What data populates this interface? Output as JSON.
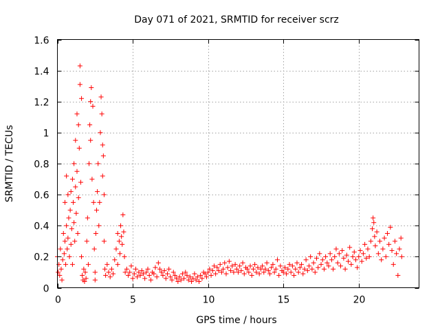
{
  "chart_data": {
    "type": "scatter",
    "title": "Day 071 of 2021, SRMTID for receiver scrz",
    "xlabel": "GPS time / hours",
    "ylabel": "SRMTID / TECUs",
    "xlim": [
      0,
      24
    ],
    "ylim": [
      0,
      1.6
    ],
    "xticks": [
      0,
      5,
      10,
      15,
      20
    ],
    "xtick_labels": [
      "0",
      "5",
      "10",
      "15",
      "20"
    ],
    "yticks": [
      0,
      0.2,
      0.4,
      0.6,
      0.8,
      1.0,
      1.2,
      1.4,
      1.6
    ],
    "ytick_labels": [
      "0",
      "0.2",
      "0.4",
      "0.6",
      "0.8",
      "1",
      "1.2",
      "1.4",
      "1.6"
    ],
    "grid": true,
    "marker": "+",
    "series": [
      {
        "name": "SRMTID",
        "color": "#ff0000",
        "points": [
          [
            0.0,
            0.2
          ],
          [
            0.05,
            0.1
          ],
          [
            0.1,
            0.15
          ],
          [
            0.15,
            0.08
          ],
          [
            0.2,
            0.25
          ],
          [
            0.25,
            0.12
          ],
          [
            0.3,
            0.05
          ],
          [
            0.35,
            0.18
          ],
          [
            0.4,
            0.35
          ],
          [
            0.45,
            0.22
          ],
          [
            0.5,
            0.3
          ],
          [
            0.5,
            0.55
          ],
          [
            0.55,
            0.15
          ],
          [
            0.6,
            0.4
          ],
          [
            0.6,
            0.72
          ],
          [
            0.65,
            0.25
          ],
          [
            0.7,
            0.6
          ],
          [
            0.7,
            0.32
          ],
          [
            0.75,
            0.45
          ],
          [
            0.8,
            0.2
          ],
          [
            0.85,
            0.5
          ],
          [
            0.9,
            0.62
          ],
          [
            0.9,
            0.28
          ],
          [
            0.95,
            0.38
          ],
          [
            1.0,
            0.7
          ],
          [
            1.0,
            0.15
          ],
          [
            1.05,
            0.55
          ],
          [
            1.1,
            0.8
          ],
          [
            1.1,
            0.42
          ],
          [
            1.15,
            0.3
          ],
          [
            1.2,
            0.65
          ],
          [
            1.2,
            0.95
          ],
          [
            1.25,
            0.48
          ],
          [
            1.3,
            0.75
          ],
          [
            1.3,
            1.12
          ],
          [
            1.35,
            0.35
          ],
          [
            1.4,
            0.58
          ],
          [
            1.4,
            1.05
          ],
          [
            1.45,
            0.9
          ],
          [
            1.5,
            1.43
          ],
          [
            1.5,
            1.31
          ],
          [
            1.55,
            0.68
          ],
          [
            1.6,
            0.2
          ],
          [
            1.6,
            1.22
          ],
          [
            1.65,
            0.08
          ],
          [
            1.7,
            0.05
          ],
          [
            1.75,
            0.12
          ],
          [
            1.8,
            0.04
          ],
          [
            1.85,
            0.1
          ],
          [
            1.9,
            0.06
          ],
          [
            1.95,
            0.3
          ],
          [
            2.0,
            0.45
          ],
          [
            2.05,
            0.15
          ],
          [
            2.1,
            0.8
          ],
          [
            2.15,
            1.05
          ],
          [
            2.2,
            1.2
          ],
          [
            2.2,
            0.95
          ],
          [
            2.25,
            1.29
          ],
          [
            2.3,
            0.7
          ],
          [
            2.35,
            1.17
          ],
          [
            2.4,
            0.55
          ],
          [
            2.45,
            0.25
          ],
          [
            2.5,
            0.1
          ],
          [
            2.5,
            0.05
          ],
          [
            2.55,
            0.35
          ],
          [
            2.6,
            0.5
          ],
          [
            2.65,
            0.62
          ],
          [
            2.7,
            0.8
          ],
          [
            2.75,
            0.4
          ],
          [
            2.8,
            0.55
          ],
          [
            2.85,
            1.0
          ],
          [
            2.9,
            1.23
          ],
          [
            2.95,
            1.12
          ],
          [
            3.0,
            0.92
          ],
          [
            3.0,
            0.72
          ],
          [
            3.05,
            0.85
          ],
          [
            3.1,
            0.6
          ],
          [
            3.1,
            0.3
          ],
          [
            3.15,
            0.12
          ],
          [
            3.2,
            0.08
          ],
          [
            3.3,
            0.15
          ],
          [
            3.4,
            0.1
          ],
          [
            3.5,
            0.07
          ],
          [
            3.6,
            0.12
          ],
          [
            3.7,
            0.09
          ],
          [
            3.8,
            0.18
          ],
          [
            3.9,
            0.25
          ],
          [
            4.0,
            0.35
          ],
          [
            4.0,
            0.15
          ],
          [
            4.1,
            0.3
          ],
          [
            4.15,
            0.22
          ],
          [
            4.2,
            0.4
          ],
          [
            4.25,
            0.33
          ],
          [
            4.3,
            0.28
          ],
          [
            4.35,
            0.47
          ],
          [
            4.4,
            0.36
          ],
          [
            4.45,
            0.2
          ],
          [
            4.5,
            0.1
          ],
          [
            4.6,
            0.12
          ],
          [
            4.7,
            0.08
          ],
          [
            4.8,
            0.1
          ],
          [
            4.9,
            0.14
          ],
          [
            5.0,
            0.06
          ],
          [
            5.1,
            0.09
          ],
          [
            5.2,
            0.12
          ],
          [
            5.3,
            0.07
          ],
          [
            5.4,
            0.1
          ],
          [
            5.5,
            0.08
          ],
          [
            5.6,
            0.11
          ],
          [
            5.7,
            0.09
          ],
          [
            5.8,
            0.06
          ],
          [
            5.9,
            0.1
          ],
          [
            6.0,
            0.12
          ],
          [
            6.1,
            0.08
          ],
          [
            6.2,
            0.05
          ],
          [
            6.3,
            0.1
          ],
          [
            6.4,
            0.09
          ],
          [
            6.5,
            0.13
          ],
          [
            6.6,
            0.07
          ],
          [
            6.7,
            0.16
          ],
          [
            6.8,
            0.12
          ],
          [
            6.9,
            0.1
          ],
          [
            7.0,
            0.08
          ],
          [
            7.1,
            0.11
          ],
          [
            7.2,
            0.06
          ],
          [
            7.3,
            0.09
          ],
          [
            7.4,
            0.12
          ],
          [
            7.5,
            0.07
          ],
          [
            7.6,
            0.05
          ],
          [
            7.7,
            0.1
          ],
          [
            7.8,
            0.08
          ],
          [
            7.9,
            0.06
          ],
          [
            8.0,
            0.04
          ],
          [
            8.1,
            0.07
          ],
          [
            8.2,
            0.05
          ],
          [
            8.3,
            0.09
          ],
          [
            8.4,
            0.06
          ],
          [
            8.5,
            0.1
          ],
          [
            8.6,
            0.08
          ],
          [
            8.7,
            0.05
          ],
          [
            8.8,
            0.07
          ],
          [
            8.9,
            0.04
          ],
          [
            9.0,
            0.06
          ],
          [
            9.1,
            0.09
          ],
          [
            9.2,
            0.05
          ],
          [
            9.3,
            0.07
          ],
          [
            9.4,
            0.04
          ],
          [
            9.5,
            0.08
          ],
          [
            9.6,
            0.06
          ],
          [
            9.7,
            0.1
          ],
          [
            9.8,
            0.09
          ],
          [
            9.9,
            0.07
          ],
          [
            10.0,
            0.1
          ],
          [
            10.1,
            0.12
          ],
          [
            10.2,
            0.08
          ],
          [
            10.3,
            0.11
          ],
          [
            10.4,
            0.14
          ],
          [
            10.5,
            0.09
          ],
          [
            10.6,
            0.13
          ],
          [
            10.7,
            0.11
          ],
          [
            10.8,
            0.15
          ],
          [
            10.9,
            0.1
          ],
          [
            11.0,
            0.12
          ],
          [
            11.1,
            0.16
          ],
          [
            11.2,
            0.09
          ],
          [
            11.3,
            0.13
          ],
          [
            11.4,
            0.17
          ],
          [
            11.5,
            0.11
          ],
          [
            11.6,
            0.14
          ],
          [
            11.7,
            0.1
          ],
          [
            11.8,
            0.15
          ],
          [
            11.9,
            0.12
          ],
          [
            12.0,
            0.1
          ],
          [
            12.1,
            0.14
          ],
          [
            12.2,
            0.11
          ],
          [
            12.3,
            0.16
          ],
          [
            12.4,
            0.09
          ],
          [
            12.5,
            0.13
          ],
          [
            12.6,
            0.12
          ],
          [
            12.7,
            0.1
          ],
          [
            12.8,
            0.14
          ],
          [
            12.9,
            0.08
          ],
          [
            13.0,
            0.12
          ],
          [
            13.1,
            0.15
          ],
          [
            13.2,
            0.1
          ],
          [
            13.3,
            0.13
          ],
          [
            13.4,
            0.09
          ],
          [
            13.5,
            0.12
          ],
          [
            13.6,
            0.14
          ],
          [
            13.7,
            0.1
          ],
          [
            13.8,
            0.12
          ],
          [
            13.9,
            0.16
          ],
          [
            14.0,
            0.11
          ],
          [
            14.1,
            0.09
          ],
          [
            14.2,
            0.13
          ],
          [
            14.3,
            0.15
          ],
          [
            14.4,
            0.1
          ],
          [
            14.5,
            0.12
          ],
          [
            14.6,
            0.18
          ],
          [
            14.7,
            0.08
          ],
          [
            14.8,
            0.14
          ],
          [
            14.9,
            0.11
          ],
          [
            15.0,
            0.1
          ],
          [
            15.1,
            0.13
          ],
          [
            15.2,
            0.09
          ],
          [
            15.3,
            0.12
          ],
          [
            15.4,
            0.15
          ],
          [
            15.5,
            0.1
          ],
          [
            15.6,
            0.14
          ],
          [
            15.7,
            0.08
          ],
          [
            15.8,
            0.12
          ],
          [
            15.9,
            0.16
          ],
          [
            16.0,
            0.1
          ],
          [
            16.1,
            0.13
          ],
          [
            16.2,
            0.15
          ],
          [
            16.3,
            0.09
          ],
          [
            16.4,
            0.12
          ],
          [
            16.5,
            0.18
          ],
          [
            16.6,
            0.11
          ],
          [
            16.7,
            0.14
          ],
          [
            16.8,
            0.2
          ],
          [
            16.9,
            0.12
          ],
          [
            17.0,
            0.16
          ],
          [
            17.1,
            0.1
          ],
          [
            17.2,
            0.19
          ],
          [
            17.3,
            0.13
          ],
          [
            17.4,
            0.22
          ],
          [
            17.5,
            0.15
          ],
          [
            17.6,
            0.18
          ],
          [
            17.7,
            0.12
          ],
          [
            17.8,
            0.2
          ],
          [
            17.9,
            0.16
          ],
          [
            18.0,
            0.14
          ],
          [
            18.1,
            0.22
          ],
          [
            18.2,
            0.18
          ],
          [
            18.3,
            0.12
          ],
          [
            18.4,
            0.2
          ],
          [
            18.5,
            0.25
          ],
          [
            18.6,
            0.16
          ],
          [
            18.7,
            0.22
          ],
          [
            18.8,
            0.14
          ],
          [
            18.9,
            0.24
          ],
          [
            19.0,
            0.19
          ],
          [
            19.1,
            0.12
          ],
          [
            19.2,
            0.21
          ],
          [
            19.3,
            0.17
          ],
          [
            19.4,
            0.26
          ],
          [
            19.5,
            0.15
          ],
          [
            19.6,
            0.2
          ],
          [
            19.7,
            0.23
          ],
          [
            19.8,
            0.18
          ],
          [
            19.9,
            0.13
          ],
          [
            20.0,
            0.2
          ],
          [
            20.1,
            0.24
          ],
          [
            20.2,
            0.17
          ],
          [
            20.3,
            0.22
          ],
          [
            20.4,
            0.28
          ],
          [
            20.5,
            0.19
          ],
          [
            20.6,
            0.25
          ],
          [
            20.7,
            0.2
          ],
          [
            20.8,
            0.3
          ],
          [
            20.9,
            0.38
          ],
          [
            20.95,
            0.45
          ],
          [
            21.0,
            0.42
          ],
          [
            21.05,
            0.33
          ],
          [
            21.1,
            0.27
          ],
          [
            21.2,
            0.36
          ],
          [
            21.3,
            0.22
          ],
          [
            21.4,
            0.3
          ],
          [
            21.5,
            0.18
          ],
          [
            21.6,
            0.25
          ],
          [
            21.7,
            0.32
          ],
          [
            21.8,
            0.2
          ],
          [
            21.9,
            0.35
          ],
          [
            22.0,
            0.28
          ],
          [
            22.1,
            0.39
          ],
          [
            22.2,
            0.24
          ],
          [
            22.3,
            0.15
          ],
          [
            22.4,
            0.3
          ],
          [
            22.5,
            0.22
          ],
          [
            22.6,
            0.08
          ],
          [
            22.7,
            0.25
          ],
          [
            22.8,
            0.32
          ],
          [
            22.85,
            0.2
          ]
        ]
      }
    ]
  }
}
